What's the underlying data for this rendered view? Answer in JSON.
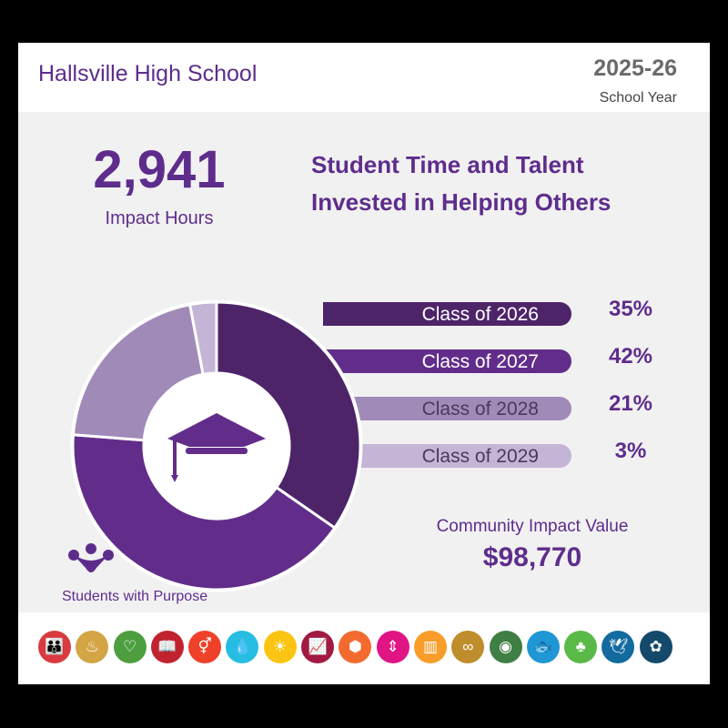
{
  "header": {
    "school": "Hallsville High School",
    "year": "2025-26",
    "year_label": "School Year"
  },
  "impact": {
    "hours": "2,941",
    "hours_label": "Impact Hours"
  },
  "title": {
    "line1": "Student Time and Talent",
    "line2": "Invested in Helping Others"
  },
  "chart_data": {
    "type": "pie",
    "style": "donut",
    "categories": [
      "Class of 2026",
      "Class of 2027",
      "Class of 2028",
      "Class of 2029"
    ],
    "values": [
      35,
      42,
      21,
      3
    ],
    "labels": [
      "35%",
      "42%",
      "21%",
      "3%"
    ],
    "colors": [
      "#4e2469",
      "#622d8a",
      "#a08ab8",
      "#c4b5d6"
    ],
    "text_colors": [
      "#ffffff",
      "#ffffff",
      "#4a3a5a",
      "#4a3a5a"
    ],
    "center_icon": "graduation-cap-icon"
  },
  "community": {
    "label": "Community Impact Value",
    "value": "$98,770"
  },
  "brand": {
    "name": "Students with Purpose",
    "icon": "people-network-icon"
  },
  "sdg_icons": [
    {
      "name": "no-poverty-icon",
      "color": "#d93a3f",
      "glyph": "👪"
    },
    {
      "name": "zero-hunger-icon",
      "color": "#d4a545",
      "glyph": "♨"
    },
    {
      "name": "good-health-icon",
      "color": "#4c9e3f",
      "glyph": "♡"
    },
    {
      "name": "quality-education-icon",
      "color": "#c0232f",
      "glyph": "📖"
    },
    {
      "name": "gender-equality-icon",
      "color": "#ef402a",
      "glyph": "⚥"
    },
    {
      "name": "clean-water-icon",
      "color": "#27bde2",
      "glyph": "💧"
    },
    {
      "name": "clean-energy-icon",
      "color": "#fbc412",
      "glyph": "☀"
    },
    {
      "name": "decent-work-icon",
      "color": "#a21942",
      "glyph": "📈"
    },
    {
      "name": "industry-innovation-icon",
      "color": "#f26a2e",
      "glyph": "⬢"
    },
    {
      "name": "reduced-inequalities-icon",
      "color": "#e01483",
      "glyph": "⇕"
    },
    {
      "name": "sustainable-cities-icon",
      "color": "#f89d2a",
      "glyph": "▥"
    },
    {
      "name": "responsible-consumption-icon",
      "color": "#bf8d2c",
      "glyph": "∞"
    },
    {
      "name": "climate-action-icon",
      "color": "#3f7e44",
      "glyph": "◉"
    },
    {
      "name": "life-below-water-icon",
      "color": "#1f97d4",
      "glyph": "🐟"
    },
    {
      "name": "life-on-land-icon",
      "color": "#59ba47",
      "glyph": "♣"
    },
    {
      "name": "peace-justice-icon",
      "color": "#136a9f",
      "glyph": "🕊"
    },
    {
      "name": "partnerships-icon",
      "color": "#14496b",
      "glyph": "✿"
    }
  ]
}
